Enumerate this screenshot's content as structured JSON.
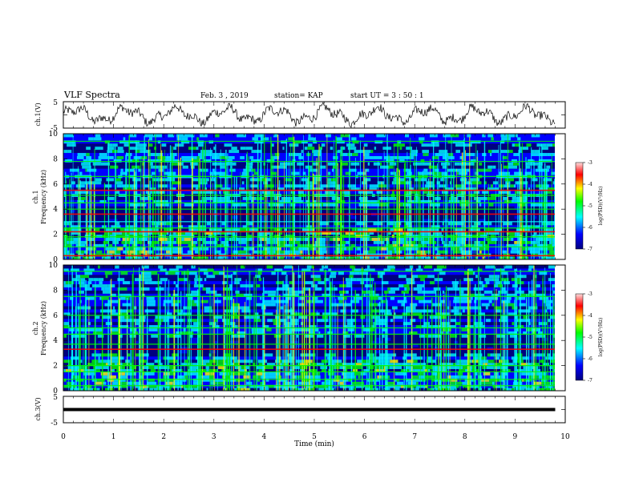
{
  "header": {
    "title": "VLF Spectra",
    "date": "Feb. 3  , 2019",
    "station": "station= KAP",
    "start": "start  UT  =   3  : 50 : 1"
  },
  "chart_data": [
    {
      "type": "line",
      "panel": "waveform-ch1",
      "ylabel": "ch.1(V)",
      "ylim": [
        -5,
        5
      ],
      "yticks": [
        "5",
        "-5"
      ],
      "xlim": [
        0,
        10
      ],
      "color": "#000000"
    },
    {
      "type": "heatmap",
      "panel": "spectrogram-ch1",
      "ylabel": "ch.1\nFrequency  (kHz)",
      "ylim": [
        0,
        10
      ],
      "yticks": [
        "0",
        "2",
        "4",
        "6",
        "8",
        "10"
      ],
      "xlim": [
        0,
        10
      ],
      "bands_khz": [
        {
          "f": 0.3,
          "level": "high"
        },
        {
          "f": 1.0,
          "level": "mid"
        },
        {
          "f": 1.8,
          "level": "mid"
        },
        {
          "f": 2.2,
          "level": "high"
        },
        {
          "f": 2.5,
          "level": "mid"
        },
        {
          "f": 3.0,
          "level": "low"
        },
        {
          "f": 3.6,
          "level": "high"
        },
        {
          "f": 4.0,
          "level": "mid"
        },
        {
          "f": 4.5,
          "level": "mid"
        },
        {
          "f": 5.1,
          "level": "mid"
        },
        {
          "f": 5.5,
          "level": "high"
        },
        {
          "f": 6.6,
          "level": "mid"
        },
        {
          "f": 7.8,
          "level": "mid"
        },
        {
          "f": 9.4,
          "level": "mid"
        }
      ],
      "colorbar": {
        "label": "log(PSD)(V²/Hz)",
        "range": [
          -7,
          -3
        ],
        "ticks": [
          "-3",
          "-4",
          "-5",
          "-6",
          "-7"
        ]
      }
    },
    {
      "type": "heatmap",
      "panel": "spectrogram-ch2",
      "ylabel": "ch.2\nFrequency  (kHz)",
      "ylim": [
        0,
        10
      ],
      "yticks": [
        "0",
        "2",
        "4",
        "6",
        "8",
        "10"
      ],
      "xlim": [
        0,
        10
      ],
      "bands_khz": [
        {
          "f": 0.4,
          "level": "mid"
        },
        {
          "f": 0.9,
          "level": "mid"
        },
        {
          "f": 1.5,
          "level": "mid"
        },
        {
          "f": 2.0,
          "level": "mid"
        },
        {
          "f": 3.3,
          "level": "high"
        },
        {
          "f": 3.7,
          "level": "mid"
        },
        {
          "f": 4.5,
          "level": "mid"
        },
        {
          "f": 5.0,
          "level": "mid"
        },
        {
          "f": 6.0,
          "level": "mid"
        },
        {
          "f": 7.5,
          "level": "mid"
        },
        {
          "f": 9.5,
          "level": "mid"
        }
      ],
      "colorbar": {
        "label": "log(PSD)(V²/Hz)",
        "range": [
          -7,
          -3
        ],
        "ticks": [
          "-3",
          "-4",
          "-5",
          "-6",
          "-7"
        ]
      }
    },
    {
      "type": "line",
      "panel": "waveform-ch3",
      "ylabel": "ch.3(V)",
      "ylim": [
        -5,
        5
      ],
      "yticks": [
        "5",
        "-5"
      ],
      "xlim": [
        0,
        10
      ],
      "xlabel": "Time  (min)",
      "xticks": [
        "0",
        "1",
        "2",
        "3",
        "4",
        "5",
        "6",
        "7",
        "8",
        "9",
        "10"
      ],
      "x": [
        0,
        9.8
      ],
      "y": [
        0,
        0
      ],
      "color": "#000000"
    }
  ],
  "colors": {
    "cmap": [
      "#00007f",
      "#0000ff",
      "#00ffff",
      "#00ff00",
      "#ffff00",
      "#ff0000",
      "#ffdede"
    ]
  }
}
